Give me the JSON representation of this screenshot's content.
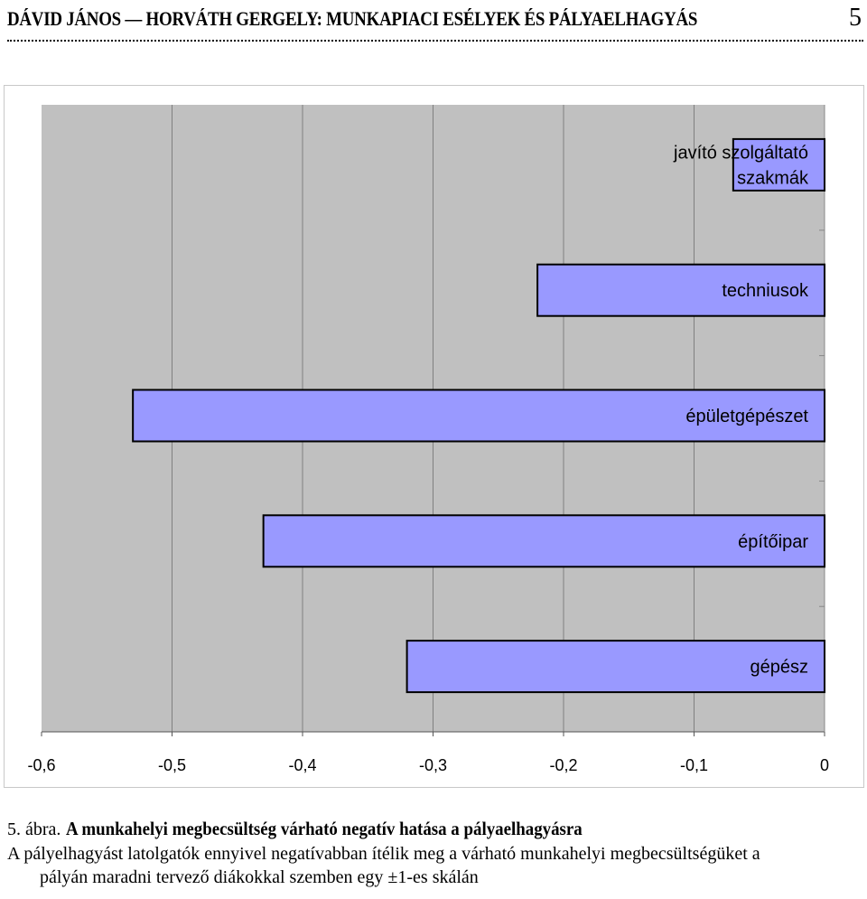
{
  "header": {
    "title": "DÁVID JÁNOS — HORVÁTH GERGELY: MUNKAPIACI ESÉLYEK ÉS PÁLYAELHAGYÁS",
    "page_number": "5"
  },
  "caption": {
    "label": "5. ábra.",
    "title": "A munkahelyi megbecsültség várható negatív hatása a pályaelhagyásra",
    "text_line1": "A pályelhagyást latolgatók ennyivel negatívabban ítélik meg a várható munkahelyi megbecsültségüket a",
    "text_line2": "pályán maradni tervező diákokkal szemben egy ±1-es skálán"
  },
  "colors": {
    "plot_background": "#c0c0c0",
    "bar_fill": "#9999ff",
    "bar_stroke": "#000000",
    "gridline": "#808080"
  },
  "chart_data": {
    "type": "bar",
    "orientation": "horizontal",
    "title": "",
    "xlabel": "",
    "ylabel": "",
    "categories": [
      "javító szolgáltató szakmák",
      "techniusok",
      "épületgépészet",
      "építőipar",
      "gépész"
    ],
    "category_label_lines": [
      [
        "javító szolgáltató",
        "szakmák"
      ],
      [
        "techniusok"
      ],
      [
        "épületgépészet"
      ],
      [
        "építőipar"
      ],
      [
        "gépész"
      ]
    ],
    "values": [
      -0.07,
      -0.22,
      -0.53,
      -0.43,
      -0.32
    ],
    "xlim": [
      -0.6,
      0
    ],
    "x_ticks": [
      -0.6,
      -0.5,
      -0.4,
      -0.3,
      -0.2,
      -0.1,
      0
    ],
    "x_tick_labels": [
      "-0,6",
      "-0,5",
      "-0,4",
      "-0,3",
      "-0,2",
      "-0,1",
      "0"
    ],
    "grid": "vertical",
    "legend": "none"
  }
}
